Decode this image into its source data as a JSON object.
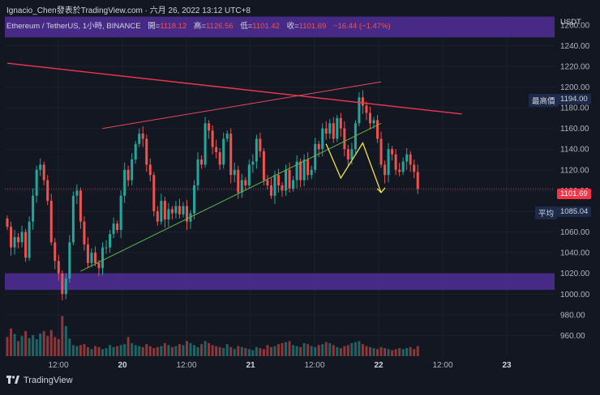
{
  "header": {
    "caption": "Ignacio_Chen發表於TradingView.com · 六月 26, 2022 13:12 UTC+8",
    "symbol": "Ethereum / TetherUS, 1小時, BINANCE",
    "open_label": "開=",
    "open_value": "1118.12",
    "high_label": "高=",
    "high_value": "1126.56",
    "low_label": "低=",
    "low_value": "1101.42",
    "close_label": "收=",
    "close_value": "1101.69",
    "change_value": "−16.44 (−1.47%)"
  },
  "axis": {
    "unit_label": "USDT"
  },
  "badges": {
    "high_label": "最高價",
    "high_value": "1194.00",
    "last_value": "1101.69",
    "avg_label": "平均",
    "avg_value": "1085.04"
  },
  "footer": {
    "brand": "TradingView"
  },
  "colors": {
    "background": "#131722",
    "up": "#26a69a",
    "down": "#ef5350",
    "zone": "#4a2b8c",
    "resistance_line": "#f2364f",
    "support_line": "#59b84a",
    "channel_top": "#e8495a",
    "projection": "#f5e146"
  },
  "chart_data": {
    "type": "candlestick",
    "y_scale": {
      "min": 940,
      "max": 1270
    },
    "yticks": [
      960,
      980,
      1000,
      1020,
      1040,
      1060,
      1080,
      1100,
      1120,
      1140,
      1160,
      1180,
      1200,
      1220,
      1240,
      1260
    ],
    "x_ticks": [
      {
        "label": "12:00",
        "bold": false
      },
      {
        "label": "20",
        "bold": true
      },
      {
        "label": "12:00",
        "bold": false
      },
      {
        "label": "21",
        "bold": true
      },
      {
        "label": "12:00",
        "bold": false
      },
      {
        "label": "22",
        "bold": true
      },
      {
        "label": "12:00",
        "bold": false
      },
      {
        "label": "23",
        "bold": true
      }
    ],
    "zones": [
      {
        "from": 1248,
        "to": 1268
      },
      {
        "from": 1004,
        "to": 1020
      }
    ],
    "reference_price": 1101.69,
    "closes": [
      1065,
      1045,
      1055,
      1050,
      1060,
      1035,
      1070,
      1095,
      1120,
      1125,
      1110,
      1090,
      1050,
      1032,
      1020,
      1000,
      1015,
      1050,
      1095,
      1100,
      1070,
      1048,
      1030,
      1040,
      1030,
      1025,
      1045,
      1045,
      1058,
      1068,
      1062,
      1095,
      1120,
      1110,
      1130,
      1145,
      1155,
      1150,
      1125,
      1115,
      1080,
      1070,
      1090,
      1072,
      1082,
      1078,
      1085,
      1077,
      1085,
      1070,
      1078,
      1105,
      1130,
      1125,
      1165,
      1158,
      1142,
      1137,
      1125,
      1150,
      1155,
      1115,
      1120,
      1098,
      1110,
      1105,
      1125,
      1128,
      1150,
      1138,
      1110,
      1105,
      1095,
      1115,
      1105,
      1100,
      1120,
      1102,
      1110,
      1128,
      1110,
      1130,
      1115,
      1120,
      1145,
      1140,
      1160,
      1155,
      1165,
      1150,
      1170,
      1160,
      1140,
      1130,
      1140,
      1165,
      1190,
      1182,
      1175,
      1165,
      1168,
      1150,
      1125,
      1115,
      1140,
      1135,
      1120,
      1118,
      1128,
      1135,
      1125,
      1118,
      1101.69
    ],
    "volumes": [
      38,
      55,
      44,
      30,
      40,
      50,
      36,
      42,
      34,
      45,
      50,
      40,
      52,
      38,
      34,
      80,
      60,
      35,
      22,
      20,
      22,
      24,
      18,
      14,
      20,
      18,
      14,
      16,
      22,
      18,
      20,
      22,
      24,
      38,
      26,
      22,
      20,
      18,
      24,
      20,
      16,
      18,
      20,
      26,
      22,
      18,
      20,
      24,
      22,
      30,
      26,
      22,
      18,
      24,
      30,
      26,
      22,
      20,
      18,
      16,
      24,
      18,
      14,
      20,
      18,
      16,
      14,
      12,
      18,
      16,
      14,
      22,
      18,
      20,
      24,
      26,
      28,
      30,
      22,
      20,
      18,
      26,
      24,
      20,
      18,
      22,
      24,
      28,
      26,
      22,
      18,
      16,
      20,
      22,
      26,
      28,
      30,
      24,
      20,
      18,
      16,
      14,
      18,
      16,
      14,
      12,
      14,
      16,
      14,
      16,
      18,
      14,
      20
    ],
    "drawings": {
      "resistance": [
        [
          0,
          1223
        ],
        [
          124,
          1174
        ]
      ],
      "support": [
        [
          20,
          1022
        ],
        [
          102,
          1165
        ]
      ],
      "channel_top": [
        [
          26,
          1160
        ],
        [
          102,
          1205
        ]
      ],
      "projection": [
        [
          87,
          1145
        ],
        [
          91,
          1112
        ],
        [
          97,
          1146
        ],
        [
          102,
          1098
        ]
      ]
    }
  }
}
